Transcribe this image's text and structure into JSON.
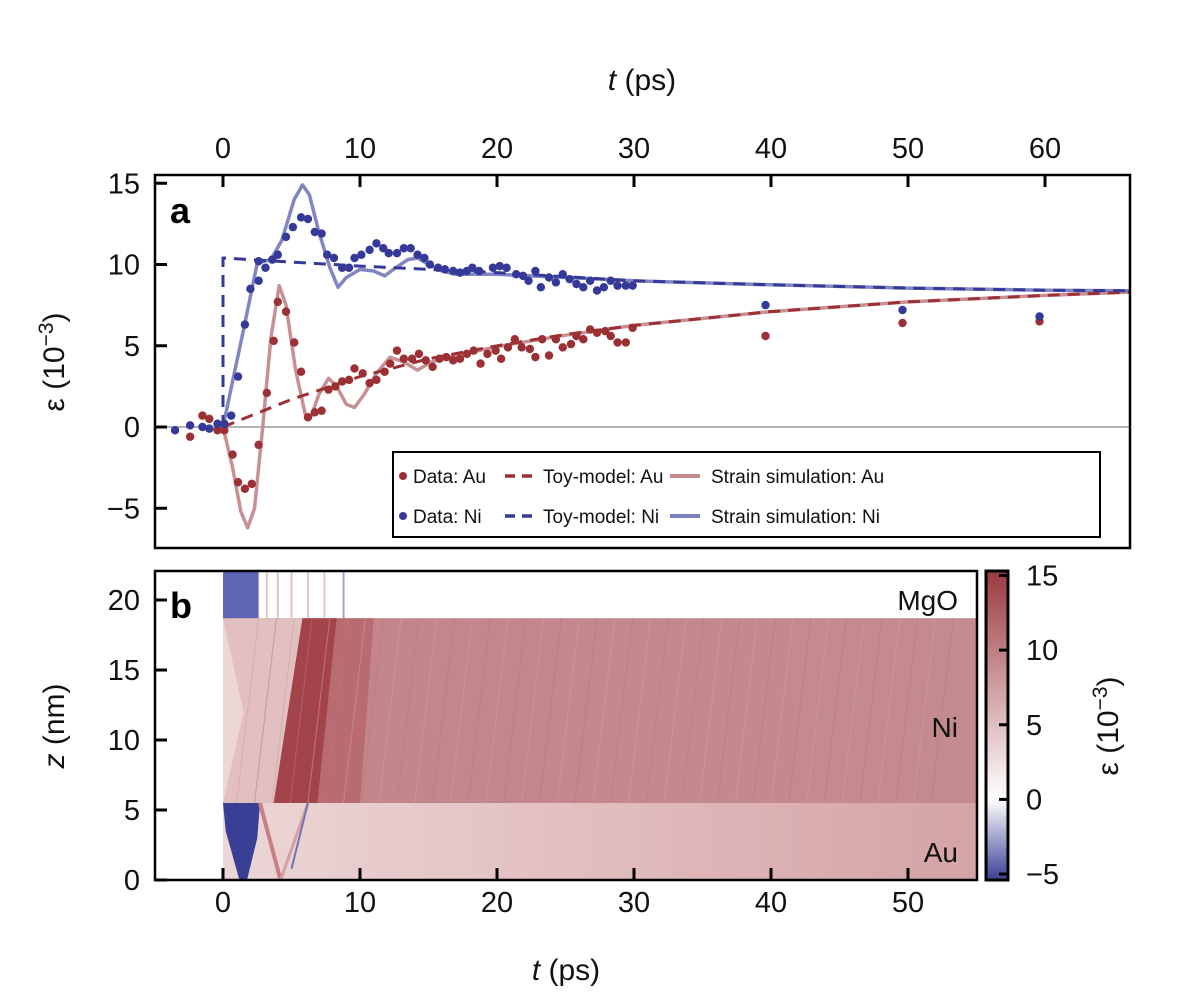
{
  "chart_data": [
    {
      "type": "scatter",
      "panel_label": "a",
      "xlabel_var": "t",
      "xlabel_unit": "(ps)",
      "x_axis_position": "top",
      "ylabel_symbol": "ε",
      "ylabel_base": "(10",
      "ylabel_exp": "−3",
      "ylabel_close": ")",
      "xlim": [
        -5,
        66.2
      ],
      "ylim": [
        -7.4,
        15.5
      ],
      "xticks": [
        0,
        10,
        20,
        30,
        40,
        50,
        60
      ],
      "yticks": [
        15,
        10,
        5,
        0,
        -5
      ],
      "ytick_labels": [
        "15",
        "10",
        "5",
        "0",
        "−5"
      ],
      "zero_line": true,
      "grid": false,
      "legend_position": "bottom-right",
      "colors": {
        "au": "#9b3035",
        "ni": "#353a98",
        "au_sim": "#c58a8e",
        "ni_sim": "#7a80c0",
        "zero": "#9a9a9a"
      },
      "series": [
        {
          "name": "Data: Au",
          "kind": "points",
          "color_key": "au",
          "points": [
            [
              -2.4,
              -0.6
            ],
            [
              -1.5,
              0.7
            ],
            [
              -1,
              0.5
            ],
            [
              -0.4,
              -0.2
            ],
            [
              0.1,
              -0.2
            ],
            [
              0.7,
              -1.7
            ],
            [
              1.1,
              -3.4
            ],
            [
              1.6,
              -3.8
            ],
            [
              2.1,
              -3.5
            ],
            [
              2.6,
              -1.1
            ],
            [
              3.2,
              2.1
            ],
            [
              3.7,
              5.3
            ],
            [
              4.0,
              7.7
            ],
            [
              4.6,
              7.1
            ],
            [
              5.2,
              5.2
            ],
            [
              5.7,
              3.4
            ],
            [
              6.2,
              0.6
            ],
            [
              6.7,
              0.9
            ],
            [
              7.2,
              1.0
            ],
            [
              7.7,
              2.3
            ],
            [
              8.2,
              2.5
            ],
            [
              8.7,
              2.8
            ],
            [
              9.2,
              2.9
            ],
            [
              9.6,
              3.6
            ],
            [
              10.2,
              3.3
            ],
            [
              10.7,
              2.7
            ],
            [
              11.2,
              2.9
            ],
            [
              11.8,
              3.4
            ],
            [
              12.2,
              3.9
            ],
            [
              12.7,
              4.7
            ],
            [
              13.2,
              4.2
            ],
            [
              13.8,
              4.2
            ],
            [
              14.3,
              4.5
            ],
            [
              14.8,
              4.1
            ],
            [
              15.3,
              3.7
            ],
            [
              15.8,
              4.2
            ],
            [
              16.3,
              4.3
            ],
            [
              16.8,
              4.1
            ],
            [
              17.3,
              4.2
            ],
            [
              17.8,
              4.5
            ],
            [
              18.3,
              4.7
            ],
            [
              18.8,
              3.9
            ],
            [
              19.3,
              4.5
            ],
            [
              19.9,
              4.7
            ],
            [
              20.3,
              4.2
            ],
            [
              20.8,
              4.9
            ],
            [
              21.3,
              5.4
            ],
            [
              21.8,
              4.9
            ],
            [
              22.4,
              4.8
            ],
            [
              22.8,
              4.3
            ],
            [
              23.3,
              5.4
            ],
            [
              23.8,
              4.4
            ],
            [
              24.3,
              5.4
            ],
            [
              24.8,
              4.9
            ],
            [
              25.4,
              5.1
            ],
            [
              25.8,
              5.6
            ],
            [
              26.3,
              5.4
            ],
            [
              26.8,
              6.0
            ],
            [
              27.3,
              5.8
            ],
            [
              27.9,
              5.9
            ],
            [
              28.3,
              5.6
            ],
            [
              28.8,
              5.2
            ],
            [
              29.4,
              5.2
            ],
            [
              29.9,
              6.1
            ],
            [
              39.6,
              5.6
            ],
            [
              49.6,
              6.4
            ],
            [
              59.6,
              6.5
            ]
          ]
        },
        {
          "name": "Data: Ni",
          "kind": "points",
          "color_key": "ni",
          "points": [
            [
              -3.5,
              -0.2
            ],
            [
              -2.4,
              0.1
            ],
            [
              -1.5,
              0
            ],
            [
              -1,
              -0.1
            ],
            [
              -0.4,
              0.2
            ],
            [
              0.1,
              0.2
            ],
            [
              0.6,
              0.7
            ],
            [
              1.1,
              3.1
            ],
            [
              1.6,
              6.3
            ],
            [
              2.0,
              8.5
            ],
            [
              2.6,
              9.0
            ],
            [
              2.6,
              10.2
            ],
            [
              3.1,
              9.8
            ],
            [
              3.6,
              10.3
            ],
            [
              4.0,
              10.6
            ],
            [
              4.6,
              11.7
            ],
            [
              5.1,
              12.3
            ],
            [
              5.7,
              12.9
            ],
            [
              6.2,
              12.8
            ],
            [
              6.7,
              12.0
            ],
            [
              7.2,
              11.9
            ],
            [
              7.6,
              10.6
            ],
            [
              8.1,
              10.4
            ],
            [
              8.7,
              9.8
            ],
            [
              9.2,
              9.8
            ],
            [
              9.6,
              10.4
            ],
            [
              10.1,
              10.6
            ],
            [
              10.7,
              10.9
            ],
            [
              11.2,
              11.3
            ],
            [
              11.7,
              11.0
            ],
            [
              12.1,
              10.7
            ],
            [
              12.7,
              10.7
            ],
            [
              13.2,
              11.0
            ],
            [
              13.7,
              11.0
            ],
            [
              14.2,
              10.6
            ],
            [
              14.7,
              10.4
            ],
            [
              15.1,
              10.0
            ],
            [
              15.7,
              9.8
            ],
            [
              16.2,
              9.7
            ],
            [
              16.8,
              9.6
            ],
            [
              17.3,
              9.5
            ],
            [
              17.8,
              9.6
            ],
            [
              18.2,
              9.8
            ],
            [
              18.7,
              9.6
            ],
            [
              19.7,
              9.8
            ],
            [
              20.2,
              9.9
            ],
            [
              20.7,
              9.8
            ],
            [
              21.4,
              9.4
            ],
            [
              21.9,
              9.3
            ],
            [
              22.3,
              9.0
            ],
            [
              22.8,
              9.6
            ],
            [
              23.2,
              8.6
            ],
            [
              23.8,
              9.2
            ],
            [
              24.3,
              8.9
            ],
            [
              24.8,
              9.4
            ],
            [
              25.3,
              9.1
            ],
            [
              25.8,
              8.8
            ],
            [
              26.3,
              8.6
            ],
            [
              26.8,
              9.0
            ],
            [
              27.3,
              8.4
            ],
            [
              27.8,
              8.6
            ],
            [
              28.3,
              9.0
            ],
            [
              28.8,
              8.7
            ],
            [
              29.4,
              8.7
            ],
            [
              29.9,
              8.7
            ],
            [
              39.6,
              7.5
            ],
            [
              49.6,
              7.2
            ],
            [
              59.6,
              6.8
            ]
          ]
        },
        {
          "name": "Toy-model: Au",
          "kind": "dashed",
          "color_key": "au",
          "points": [
            [
              0,
              0
            ],
            [
              5,
              1.7
            ],
            [
              10,
              3.1
            ],
            [
              15,
              4.2
            ],
            [
              20,
              5.0
            ],
            [
              25,
              5.7
            ],
            [
              30,
              6.25
            ],
            [
              40,
              7.1
            ],
            [
              50,
              7.7
            ],
            [
              60,
              8.1
            ],
            [
              66.2,
              8.3
            ]
          ]
        },
        {
          "name": "Toy-model: Ni",
          "kind": "dashed",
          "color_key": "ni",
          "points": [
            [
              0,
              0
            ],
            [
              0,
              10.4
            ],
            [
              10,
              9.9
            ],
            [
              20,
              9.5
            ],
            [
              30,
              9.0
            ],
            [
              40,
              8.75
            ],
            [
              50,
              8.55
            ],
            [
              60,
              8.42
            ],
            [
              66.2,
              8.38
            ]
          ]
        },
        {
          "name": "Strain simulation: Au",
          "kind": "line",
          "color_key": "au_sim",
          "points": [
            [
              0,
              0
            ],
            [
              0.7,
              -2.5
            ],
            [
              1.3,
              -5.2
            ],
            [
              1.8,
              -6.2
            ],
            [
              2.3,
              -5
            ],
            [
              2.9,
              0
            ],
            [
              3.5,
              5.5
            ],
            [
              4.1,
              8.7
            ],
            [
              4.6,
              7.5
            ],
            [
              5.3,
              3.5
            ],
            [
              6.0,
              0.8
            ],
            [
              6.4,
              0.6
            ],
            [
              7.0,
              2.0
            ],
            [
              7.7,
              3.0
            ],
            [
              8.3,
              2.5
            ],
            [
              9.0,
              1.4
            ],
            [
              9.6,
              1.2
            ],
            [
              10.3,
              2.0
            ],
            [
              11.2,
              3.3
            ],
            [
              12.2,
              4.3
            ],
            [
              13.2,
              4.0
            ],
            [
              14.2,
              3.5
            ],
            [
              15.2,
              4.0
            ],
            [
              16.5,
              4.3
            ],
            [
              20,
              4.95
            ],
            [
              25,
              5.65
            ],
            [
              30,
              6.25
            ],
            [
              40,
              7.1
            ],
            [
              50,
              7.7
            ],
            [
              60,
              8.1
            ],
            [
              66.2,
              8.3
            ]
          ]
        },
        {
          "name": "Strain simulation: Ni",
          "kind": "line",
          "color_key": "ni_sim",
          "points": [
            [
              0,
              0
            ],
            [
              0.5,
              2
            ],
            [
              1.5,
              6
            ],
            [
              2.5,
              10.1
            ],
            [
              3.5,
              10.3
            ],
            [
              4.3,
              11.5
            ],
            [
              5.2,
              14
            ],
            [
              5.8,
              14.9
            ],
            [
              6.3,
              14.3
            ],
            [
              7,
              12
            ],
            [
              7.8,
              9.8
            ],
            [
              8.4,
              8.6
            ],
            [
              9,
              9.2
            ],
            [
              10,
              9.7
            ],
            [
              11,
              9.6
            ],
            [
              11.8,
              9.3
            ],
            [
              12.6,
              9.8
            ],
            [
              13.5,
              10.3
            ],
            [
              14.2,
              10.4
            ],
            [
              15,
              10.0
            ],
            [
              16,
              9.6
            ],
            [
              17,
              9.4
            ],
            [
              20,
              9.4
            ],
            [
              25,
              9.2
            ],
            [
              30,
              9.0
            ],
            [
              40,
              8.75
            ],
            [
              50,
              8.55
            ],
            [
              60,
              8.42
            ],
            [
              66.2,
              8.38
            ]
          ]
        }
      ]
    },
    {
      "type": "heatmap",
      "panel_label": "b",
      "xlabel_var": "t",
      "xlabel_unit": "(ps)",
      "ylabel_var": "z",
      "ylabel_unit": "(nm)",
      "xlim": [
        -5,
        55
      ],
      "ylim": [
        0,
        22.1
      ],
      "xticks": [
        0,
        10,
        20,
        30,
        40,
        50
      ],
      "yticks": [
        0,
        5,
        10,
        15,
        20
      ],
      "layers": [
        {
          "name": "Au",
          "z_range": [
            0,
            5.5
          ]
        },
        {
          "name": "Ni",
          "z_range": [
            5.5,
            18.7
          ]
        },
        {
          "name": "MgO",
          "z_range": [
            18.7,
            22.1
          ]
        }
      ],
      "colorbar": {
        "label_symbol": "ε",
        "label_base": "(10",
        "label_exp": "−3",
        "label_close": ")",
        "range": [
          -5.4,
          15.3
        ],
        "ticks": [
          15,
          10,
          5,
          0,
          -5
        ],
        "tick_labels": [
          "15",
          "10",
          "5",
          "0",
          "−5"
        ],
        "colors": {
          "min": "#3a3f96",
          "zero": "#ffffff",
          "max": "#9c3a40"
        }
      }
    }
  ]
}
